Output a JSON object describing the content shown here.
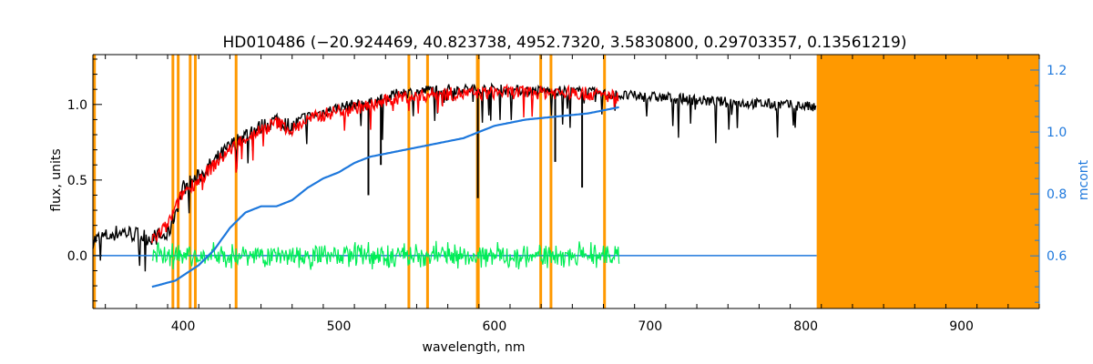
{
  "chart_data": {
    "type": "line",
    "title": "HD010486    (−20.924469, 40.823738, 4952.7320, 3.5830800, 0.29703357, 0.13561219)",
    "xlabel": "wavelength, nm",
    "ylabel": "flux, units",
    "y2label": "mcont",
    "xlim": [
      342,
      950
    ],
    "ylim": [
      -0.35,
      1.33
    ],
    "y2lim": [
      0.43,
      1.25
    ],
    "x_ticks": [
      400,
      500,
      600,
      700,
      800,
      900
    ],
    "y_ticks": [
      0.0,
      0.5,
      1.0
    ],
    "y2_ticks": [
      0.6,
      0.8,
      1.0,
      1.2
    ],
    "masked_lines_nm": [
      343,
      393.4,
      396.8,
      404.5,
      407.8,
      434.0,
      545.0,
      557.0,
      589.0,
      589.6,
      629.7,
      636.3,
      670.7
    ],
    "masked_region_nm": [
      807,
      950
    ],
    "colors": {
      "observed": "#000000",
      "model": "#ff0000",
      "residuals": "#00ee55",
      "continuum": "#1e78dc",
      "mask": "#ff9900",
      "axes": "#000000",
      "right_axis": "#1e78dc"
    },
    "series": [
      {
        "name": "observed flux",
        "x": [
          342,
          360,
          378,
          390,
          400,
          410,
          420,
          430,
          440,
          450,
          460,
          470,
          480,
          490,
          500,
          510,
          520,
          530,
          540,
          550,
          560,
          570,
          580,
          590,
          600,
          620,
          640,
          660,
          680,
          700,
          720,
          740,
          760,
          780,
          800,
          807
        ],
        "y": [
          0.1,
          0.16,
          0.12,
          0.13,
          0.45,
          0.52,
          0.62,
          0.72,
          0.8,
          0.85,
          0.9,
          0.85,
          0.92,
          0.95,
          0.98,
          1.0,
          1.01,
          1.04,
          1.08,
          1.08,
          1.1,
          1.1,
          1.1,
          1.1,
          1.1,
          1.09,
          1.09,
          1.08,
          1.06,
          1.05,
          1.04,
          1.02,
          1.01,
          1.0,
          0.99,
          0.97
        ]
      },
      {
        "name": "model flux",
        "x": [
          380,
          390,
          400,
          410,
          420,
          430,
          440,
          450,
          460,
          470,
          480,
          490,
          500,
          510,
          520,
          530,
          540,
          550,
          560,
          570,
          580,
          590,
          600,
          620,
          640,
          660,
          680
        ],
        "y": [
          0.1,
          0.2,
          0.42,
          0.5,
          0.6,
          0.7,
          0.78,
          0.83,
          0.88,
          0.83,
          0.9,
          0.93,
          0.96,
          0.98,
          0.99,
          1.02,
          1.05,
          1.05,
          1.07,
          1.07,
          1.07,
          1.07,
          1.08,
          1.08,
          1.08,
          1.07,
          1.05
        ]
      },
      {
        "name": "continuum",
        "axis": "right",
        "x": [
          380,
          395,
          410,
          420,
          430,
          440,
          450,
          460,
          470,
          480,
          490,
          500,
          510,
          520,
          530,
          540,
          560,
          580,
          600,
          620,
          640,
          660,
          680
        ],
        "y": [
          0.5,
          0.52,
          0.57,
          0.62,
          0.69,
          0.74,
          0.76,
          0.76,
          0.78,
          0.82,
          0.85,
          0.87,
          0.9,
          0.92,
          0.93,
          0.94,
          0.96,
          0.98,
          1.02,
          1.04,
          1.05,
          1.06,
          1.08
        ]
      },
      {
        "name": "residuals",
        "x": [
          380,
          400,
          450,
          500,
          550,
          600,
          650,
          680
        ],
        "y": [
          0.0,
          0.0,
          0.0,
          0.0,
          0.0,
          0.0,
          0.0,
          0.0
        ],
        "scatter": 0.06
      },
      {
        "name": "zero level",
        "x": [
          342,
          807
        ],
        "y": [
          0.0,
          0.0
        ]
      }
    ],
    "grid": false
  }
}
